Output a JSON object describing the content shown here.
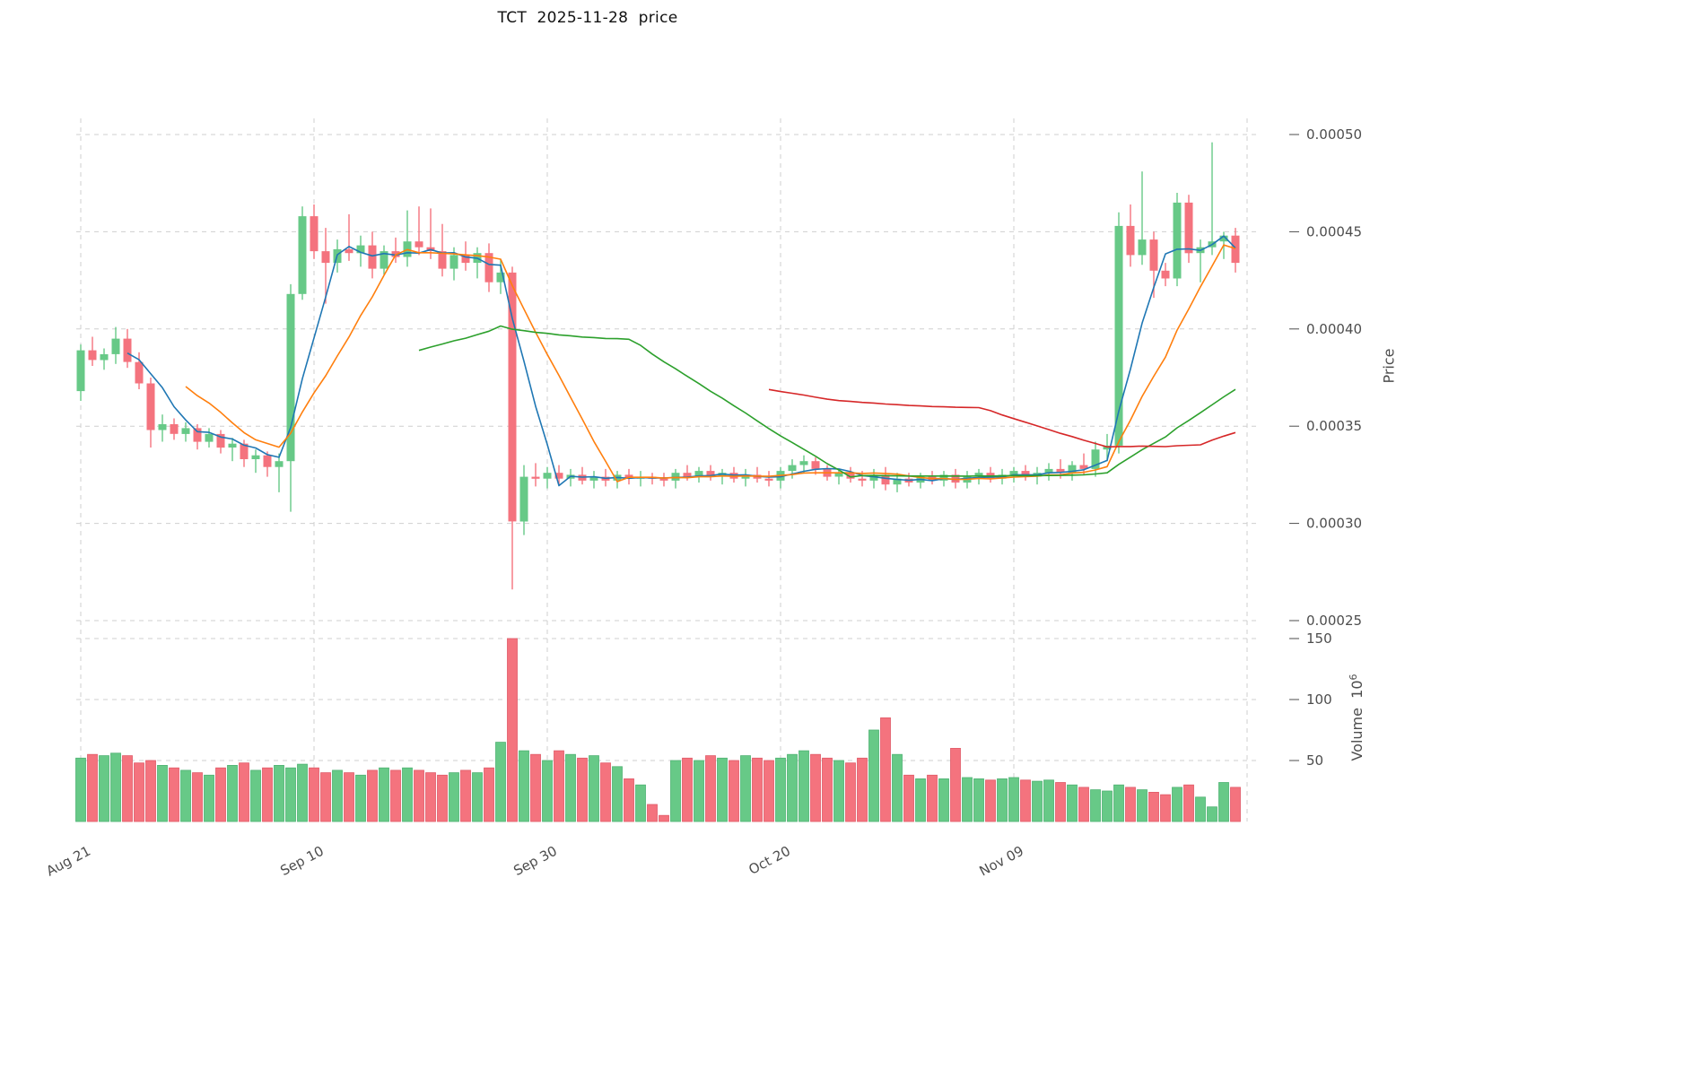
{
  "colors": {
    "up": "#67c987",
    "down": "#f4737e",
    "up_edge": "#4fb273",
    "down_edge": "#e05a68",
    "grid": "#cfcfcf",
    "tick": "#4d4d4d",
    "ma": [
      "#1f77b4",
      "#ff7f0e",
      "#2ca02c",
      "#d62728"
    ]
  },
  "chart_data": {
    "type": "candlestick",
    "title": "TCT  2025-11-28  price",
    "price_axis": {
      "label": "Price",
      "price_unit": 1e-05,
      "ticks": [
        "0.00025",
        "0.00030",
        "0.00035",
        "0.00040",
        "0.00045",
        "0.00050"
      ],
      "tick_values": [
        25,
        30,
        35,
        40,
        45,
        50
      ],
      "ylim": [
        24.5,
        51.5
      ]
    },
    "volume_axis": {
      "label_base": "Volume  10",
      "label_exponent": "6",
      "ticks": [
        "50",
        "100",
        "150"
      ],
      "tick_values": [
        50,
        100,
        150
      ],
      "ylim": [
        0,
        150
      ]
    },
    "x_tick_labels": [
      "Aug 21",
      "Sep 10",
      "Sep 30",
      "Oct 20",
      "Nov 09"
    ],
    "x_tick_indices": [
      0,
      20,
      40,
      60,
      80
    ],
    "x_grid_indices": [
      0,
      20,
      40,
      60,
      80,
      100
    ],
    "ma_windows": [
      5,
      10,
      30,
      60
    ],
    "columns": [
      "open",
      "high",
      "low",
      "close",
      "volume_millions"
    ],
    "candles": [
      [
        36.8,
        39.2,
        36.3,
        38.9,
        52
      ],
      [
        38.9,
        39.6,
        38.1,
        38.4,
        55
      ],
      [
        38.4,
        39.0,
        37.9,
        38.7,
        54
      ],
      [
        38.7,
        40.1,
        38.2,
        39.5,
        56
      ],
      [
        39.5,
        40.0,
        38.0,
        38.3,
        54
      ],
      [
        38.3,
        38.8,
        36.9,
        37.2,
        48
      ],
      [
        37.2,
        37.5,
        33.9,
        34.8,
        50
      ],
      [
        34.8,
        35.6,
        34.2,
        35.1,
        46
      ],
      [
        35.1,
        35.4,
        34.3,
        34.6,
        44
      ],
      [
        34.6,
        35.2,
        34.2,
        34.9,
        42
      ],
      [
        34.9,
        35.1,
        33.8,
        34.2,
        40
      ],
      [
        34.2,
        34.9,
        33.9,
        34.6,
        38
      ],
      [
        34.6,
        34.8,
        33.6,
        33.9,
        44
      ],
      [
        33.9,
        34.4,
        33.2,
        34.1,
        46
      ],
      [
        34.1,
        34.3,
        32.9,
        33.3,
        48
      ],
      [
        33.3,
        33.8,
        32.6,
        33.5,
        42
      ],
      [
        33.5,
        33.7,
        32.4,
        32.9,
        44
      ],
      [
        32.9,
        33.6,
        31.6,
        33.2,
        46
      ],
      [
        33.2,
        42.3,
        30.6,
        41.8,
        44
      ],
      [
        41.8,
        46.3,
        41.5,
        45.8,
        47
      ],
      [
        45.8,
        46.4,
        43.6,
        44.0,
        44
      ],
      [
        44.0,
        45.2,
        41.3,
        43.4,
        40
      ],
      [
        43.4,
        44.6,
        42.9,
        44.1,
        42
      ],
      [
        44.1,
        45.9,
        43.5,
        43.9,
        40
      ],
      [
        43.9,
        44.8,
        43.2,
        44.3,
        38
      ],
      [
        44.3,
        45.0,
        42.6,
        43.1,
        42
      ],
      [
        43.1,
        44.3,
        42.8,
        44.0,
        44
      ],
      [
        44.0,
        44.7,
        43.4,
        43.7,
        42
      ],
      [
        43.7,
        46.1,
        43.2,
        44.5,
        44
      ],
      [
        44.5,
        46.3,
        43.8,
        44.2,
        42
      ],
      [
        44.2,
        46.2,
        43.6,
        44.0,
        40
      ],
      [
        44.0,
        45.4,
        42.7,
        43.1,
        38
      ],
      [
        43.1,
        44.2,
        42.5,
        43.8,
        40
      ],
      [
        43.8,
        44.5,
        43.0,
        43.4,
        42
      ],
      [
        43.4,
        44.2,
        42.6,
        43.9,
        40
      ],
      [
        43.9,
        44.4,
        41.9,
        42.4,
        44
      ],
      [
        42.4,
        43.6,
        41.8,
        42.9,
        65
      ],
      [
        42.9,
        43.2,
        26.6,
        30.1,
        150
      ],
      [
        30.1,
        33.0,
        29.4,
        32.4,
        58
      ],
      [
        32.4,
        33.1,
        31.9,
        32.3,
        55
      ],
      [
        32.3,
        32.9,
        31.8,
        32.6,
        50
      ],
      [
        32.6,
        33.0,
        32.0,
        32.3,
        58
      ],
      [
        32.3,
        32.8,
        31.9,
        32.5,
        55
      ],
      [
        32.5,
        32.9,
        32.0,
        32.2,
        52
      ],
      [
        32.2,
        32.7,
        31.8,
        32.4,
        54
      ],
      [
        32.4,
        32.8,
        31.9,
        32.2,
        48
      ],
      [
        32.2,
        32.7,
        31.8,
        32.5,
        45
      ],
      [
        32.5,
        32.8,
        32.0,
        32.3,
        35
      ],
      [
        32.3,
        32.7,
        31.9,
        32.4,
        30
      ],
      [
        32.4,
        32.6,
        32.0,
        32.3,
        14
      ],
      [
        32.3,
        32.6,
        31.9,
        32.2,
        5
      ],
      [
        32.2,
        32.8,
        31.8,
        32.6,
        50
      ],
      [
        32.6,
        33.0,
        32.2,
        32.4,
        52
      ],
      [
        32.4,
        32.9,
        32.1,
        32.7,
        50
      ],
      [
        32.7,
        33.0,
        32.2,
        32.4,
        54
      ],
      [
        32.4,
        32.8,
        32.0,
        32.6,
        52
      ],
      [
        32.6,
        32.9,
        32.1,
        32.3,
        50
      ],
      [
        32.3,
        32.8,
        31.9,
        32.5,
        54
      ],
      [
        32.5,
        32.9,
        32.1,
        32.3,
        52
      ],
      [
        32.3,
        32.7,
        31.9,
        32.2,
        50
      ],
      [
        32.2,
        32.9,
        31.8,
        32.7,
        52
      ],
      [
        32.7,
        33.3,
        32.3,
        33.0,
        55
      ],
      [
        33.0,
        33.5,
        32.6,
        33.2,
        58
      ],
      [
        33.2,
        33.4,
        32.5,
        32.8,
        55
      ],
      [
        32.8,
        33.0,
        32.2,
        32.4,
        52
      ],
      [
        32.4,
        32.8,
        32.0,
        32.6,
        50
      ],
      [
        32.6,
        32.9,
        32.1,
        32.3,
        48
      ],
      [
        32.3,
        32.7,
        31.9,
        32.2,
        52
      ],
      [
        32.2,
        32.8,
        31.8,
        32.5,
        75
      ],
      [
        32.5,
        32.9,
        31.7,
        32.0,
        85
      ],
      [
        32.0,
        32.6,
        31.6,
        32.3,
        55
      ],
      [
        32.3,
        32.6,
        31.9,
        32.1,
        38
      ],
      [
        32.1,
        32.6,
        31.8,
        32.4,
        35
      ],
      [
        32.4,
        32.7,
        32.0,
        32.2,
        38
      ],
      [
        32.2,
        32.7,
        31.9,
        32.5,
        35
      ],
      [
        32.5,
        32.8,
        31.8,
        32.1,
        60
      ],
      [
        32.1,
        32.7,
        31.8,
        32.4,
        36
      ],
      [
        32.4,
        32.8,
        32.0,
        32.6,
        35
      ],
      [
        32.6,
        32.9,
        32.1,
        32.3,
        34
      ],
      [
        32.3,
        32.8,
        32.0,
        32.5,
        35
      ],
      [
        32.5,
        32.9,
        32.1,
        32.7,
        36
      ],
      [
        32.7,
        33.0,
        32.2,
        32.4,
        34
      ],
      [
        32.4,
        32.9,
        32.0,
        32.6,
        33
      ],
      [
        32.6,
        33.1,
        32.2,
        32.8,
        34
      ],
      [
        32.8,
        33.3,
        32.3,
        32.6,
        32
      ],
      [
        32.6,
        33.2,
        32.2,
        33.0,
        30
      ],
      [
        33.0,
        33.6,
        32.5,
        32.8,
        28
      ],
      [
        32.8,
        34.2,
        32.4,
        33.8,
        26
      ],
      [
        33.8,
        34.6,
        33.2,
        34.0,
        25
      ],
      [
        34.0,
        46.0,
        33.6,
        45.3,
        30
      ],
      [
        45.3,
        46.4,
        43.2,
        43.8,
        28
      ],
      [
        43.8,
        48.1,
        43.3,
        44.6,
        26
      ],
      [
        44.6,
        45.0,
        41.6,
        43.0,
        24
      ],
      [
        43.0,
        43.4,
        42.2,
        42.6,
        22
      ],
      [
        42.6,
        47.0,
        42.2,
        46.5,
        28
      ],
      [
        46.5,
        46.9,
        43.4,
        43.9,
        30
      ],
      [
        43.9,
        44.6,
        42.4,
        44.2,
        20
      ],
      [
        44.2,
        49.6,
        43.8,
        44.5,
        12
      ],
      [
        44.5,
        45.0,
        43.6,
        44.8,
        32
      ],
      [
        44.8,
        45.2,
        42.9,
        43.4,
        28
      ]
    ]
  }
}
